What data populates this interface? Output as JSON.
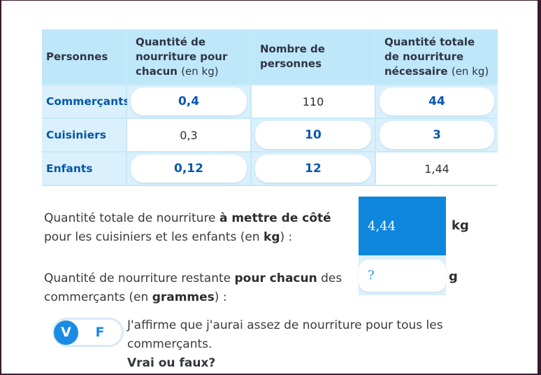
{
  "colors": {
    "accent_blue": "#0d86dc",
    "header_blue": "#bfe7fa",
    "cell_light_blue": "#daf0fc",
    "answer_text_blue": "#0a58b0",
    "toggle_blue": "#1b8ce5",
    "frame_plum": "#371a2e"
  },
  "table": {
    "headers": [
      {
        "label": "Personnes",
        "unit": ""
      },
      {
        "label": "Quantité de nourriture pour chacun",
        "unit": "(en kg)"
      },
      {
        "label": "Nombre de personnes",
        "unit": ""
      },
      {
        "label": "Quantité totale de nourriture nécessaire",
        "unit": "(en kg)"
      }
    ],
    "rows": [
      {
        "label": "Commerçants",
        "values": [
          "0,4",
          "110",
          "44"
        ],
        "filled": [
          true,
          false,
          true
        ]
      },
      {
        "label": "Cuisiniers",
        "values": [
          "0,3",
          "10",
          "3"
        ],
        "filled": [
          false,
          true,
          true
        ]
      },
      {
        "label": "Enfants",
        "values": [
          "0,12",
          "12",
          "1,44"
        ],
        "filled": [
          true,
          true,
          false
        ]
      }
    ]
  },
  "question_total": {
    "segments": [
      {
        "t": "Quantité totale de nourriture "
      },
      {
        "t": "à mettre de côté"
      },
      {
        "t": " pour les cuisiniers et les enfants (en "
      },
      {
        "t": "kg"
      },
      {
        "t": ") :"
      }
    ],
    "input_value": "4,44",
    "unit": "kg"
  },
  "question_remaining": {
    "segments": [
      {
        "t": "Quantité de nourriture restante "
      },
      {
        "t": "pour chacun"
      },
      {
        "t": " des commerçants (en "
      },
      {
        "t": "grammes"
      },
      {
        "t": ") :"
      }
    ],
    "input_value": "?",
    "unit": "g"
  },
  "true_false": {
    "true_label": "V",
    "false_label": "F",
    "statement": "J'affirme que j'aurai assez de nourriture pour tous les commerçants.",
    "prompt": "Vrai ou faux?"
  }
}
